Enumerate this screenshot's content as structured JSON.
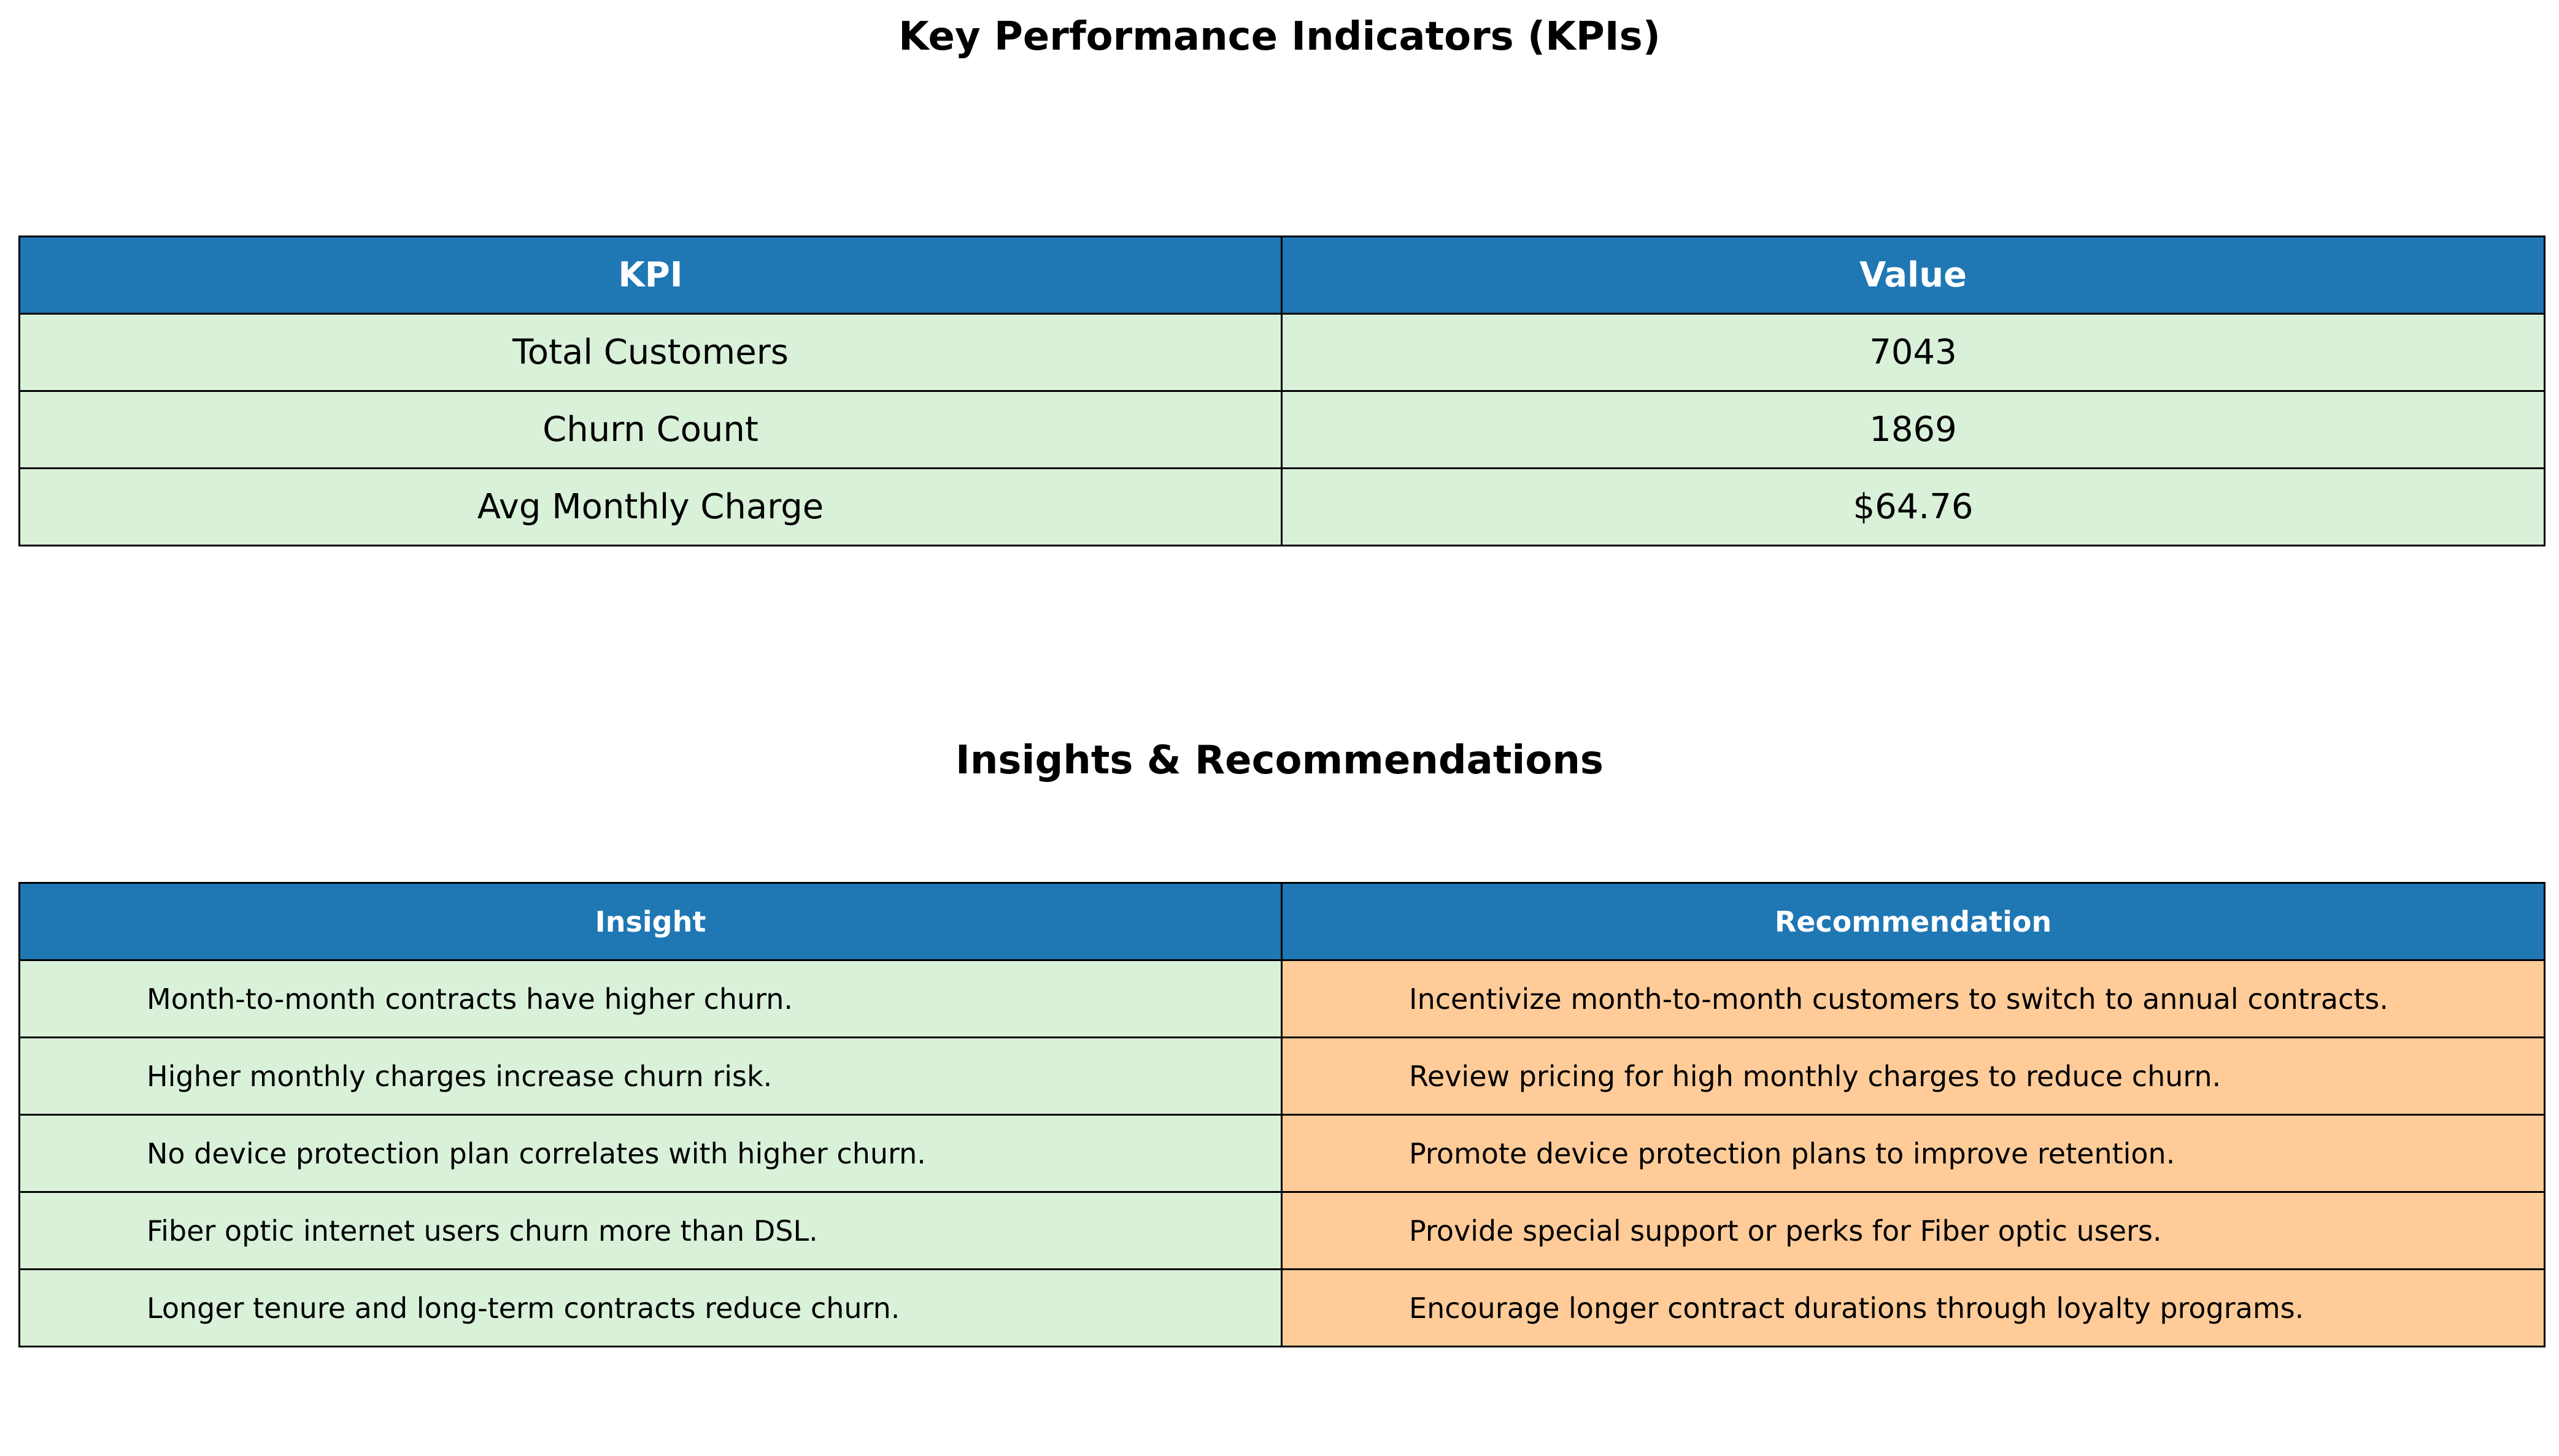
{
  "colors": {
    "header_bg": "#1f77b4",
    "header_text": "#ffffff",
    "insight_bg": "#d9f0d9",
    "recommendation_bg": "#ffcc99",
    "border": "#000000"
  },
  "kpi_section": {
    "title": "Key Performance Indicators (KPIs)",
    "headers": [
      "KPI",
      "Value"
    ],
    "rows": [
      [
        "Total Customers",
        "7043"
      ],
      [
        "Churn Count",
        "1869"
      ],
      [
        "Avg Monthly Charge",
        "$64.76"
      ]
    ]
  },
  "insights_section": {
    "title": "Insights & Recommendations",
    "headers": [
      "Insight",
      "Recommendation"
    ],
    "rows": [
      [
        "Month-to-month contracts have higher churn.",
        "Incentivize month-to-month customers to switch to annual contracts."
      ],
      [
        "Higher monthly charges increase churn risk.",
        "Review pricing for high monthly charges to reduce churn."
      ],
      [
        "No device protection plan correlates with higher churn.",
        "Promote device protection plans to improve retention."
      ],
      [
        "Fiber optic internet users churn more than DSL.",
        "Provide special support or perks for Fiber optic users."
      ],
      [
        "Longer tenure and long-term contracts reduce churn.",
        "Encourage longer contract durations through loyalty programs."
      ]
    ]
  },
  "chart_data": [
    {
      "type": "table",
      "title": "Key Performance Indicators (KPIs)",
      "columns": [
        "KPI",
        "Value"
      ],
      "rows": [
        [
          "Total Customers",
          "7043"
        ],
        [
          "Churn Count",
          "1869"
        ],
        [
          "Avg Monthly Charge",
          "$64.76"
        ]
      ]
    },
    {
      "type": "table",
      "title": "Insights & Recommendations",
      "columns": [
        "Insight",
        "Recommendation"
      ],
      "rows": [
        [
          "Month-to-month contracts have higher churn.",
          "Incentivize month-to-month customers to switch to annual contracts."
        ],
        [
          "Higher monthly charges increase churn risk.",
          "Review pricing for high monthly charges to reduce churn."
        ],
        [
          "No device protection plan correlates with higher churn.",
          "Promote device protection plans to improve retention."
        ],
        [
          "Fiber optic internet users churn more than DSL.",
          "Provide special support or perks for Fiber optic users."
        ],
        [
          "Longer tenure and long-term contracts reduce churn.",
          "Encourage longer contract durations through loyalty programs."
        ]
      ]
    }
  ]
}
